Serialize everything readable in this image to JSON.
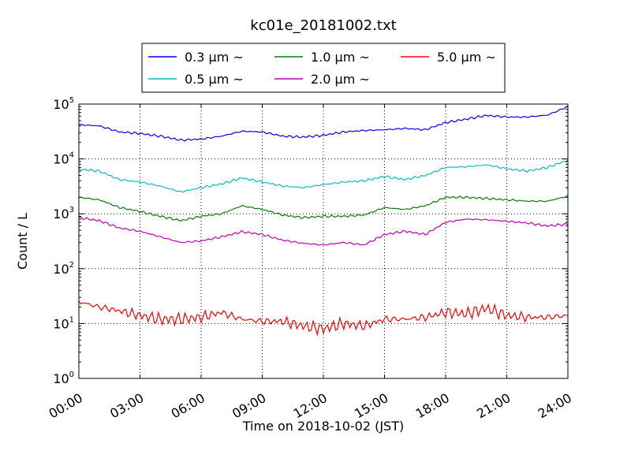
{
  "chart_data": {
    "type": "line",
    "title": "kc01e_20181002.txt",
    "xlabel": "Time on 2018-10-02 (JST)",
    "ylabel": "Count / L",
    "yscale": "log",
    "ylim": [
      1,
      100000
    ],
    "xlim": [
      "2018-10-02 00:00",
      "2018-10-03 00:00"
    ],
    "x_ticks": [
      "00:00",
      "03:00",
      "06:00",
      "09:00",
      "12:00",
      "15:00",
      "18:00",
      "21:00",
      "24:00"
    ],
    "y_ticks": [
      {
        "base": "10",
        "exp": "0"
      },
      {
        "base": "10",
        "exp": "1"
      },
      {
        "base": "10",
        "exp": "2"
      },
      {
        "base": "10",
        "exp": "3"
      },
      {
        "base": "10",
        "exp": "4"
      },
      {
        "base": "10",
        "exp": "5"
      }
    ],
    "grid": true,
    "legend_position": "top-center, above plot",
    "x": [
      "00:00",
      "01:00",
      "02:00",
      "03:00",
      "04:00",
      "05:00",
      "06:00",
      "07:00",
      "08:00",
      "09:00",
      "10:00",
      "11:00",
      "12:00",
      "13:00",
      "14:00",
      "15:00",
      "16:00",
      "17:00",
      "18:00",
      "19:00",
      "20:00",
      "21:00",
      "22:00",
      "23:00",
      "24:00"
    ],
    "series": [
      {
        "name": "0.3 μm ~",
        "color": "#0000ff",
        "values": [
          42000,
          40000,
          31000,
          29000,
          26000,
          22000,
          23000,
          26000,
          32000,
          31000,
          26000,
          25000,
          27000,
          31000,
          33000,
          34000,
          36000,
          34000,
          46000,
          53000,
          62000,
          58000,
          58000,
          63000,
          90000
        ]
      },
      {
        "name": "0.5 μm ~",
        "color": "#00bfbf",
        "values": [
          6500,
          6000,
          4200,
          3800,
          3200,
          2500,
          3000,
          3500,
          4500,
          3800,
          3200,
          3000,
          3400,
          3800,
          4000,
          4800,
          4200,
          5000,
          7000,
          7200,
          7800,
          6600,
          6000,
          7000,
          9500
        ]
      },
      {
        "name": "1.0 μm ~",
        "color": "#008000",
        "values": [
          2000,
          1800,
          1300,
          1100,
          900,
          750,
          900,
          1000,
          1400,
          1200,
          950,
          850,
          900,
          900,
          950,
          1300,
          1200,
          1400,
          2000,
          2000,
          1900,
          1800,
          1700,
          1700,
          2100
        ]
      },
      {
        "name": "2.0 μm ~",
        "color": "#bf00bf",
        "values": [
          850,
          750,
          550,
          480,
          380,
          300,
          320,
          380,
          470,
          420,
          330,
          290,
          270,
          300,
          270,
          420,
          480,
          420,
          700,
          800,
          780,
          730,
          680,
          600,
          650
        ]
      },
      {
        "name": "5.0 μm ~",
        "color": "#ff0000",
        "values": [
          25,
          20,
          17,
          14,
          12,
          12,
          13,
          16,
          12,
          11,
          11,
          9,
          8,
          10,
          9,
          12,
          12,
          13,
          16,
          15,
          19,
          14,
          13,
          13,
          14
        ]
      }
    ]
  }
}
